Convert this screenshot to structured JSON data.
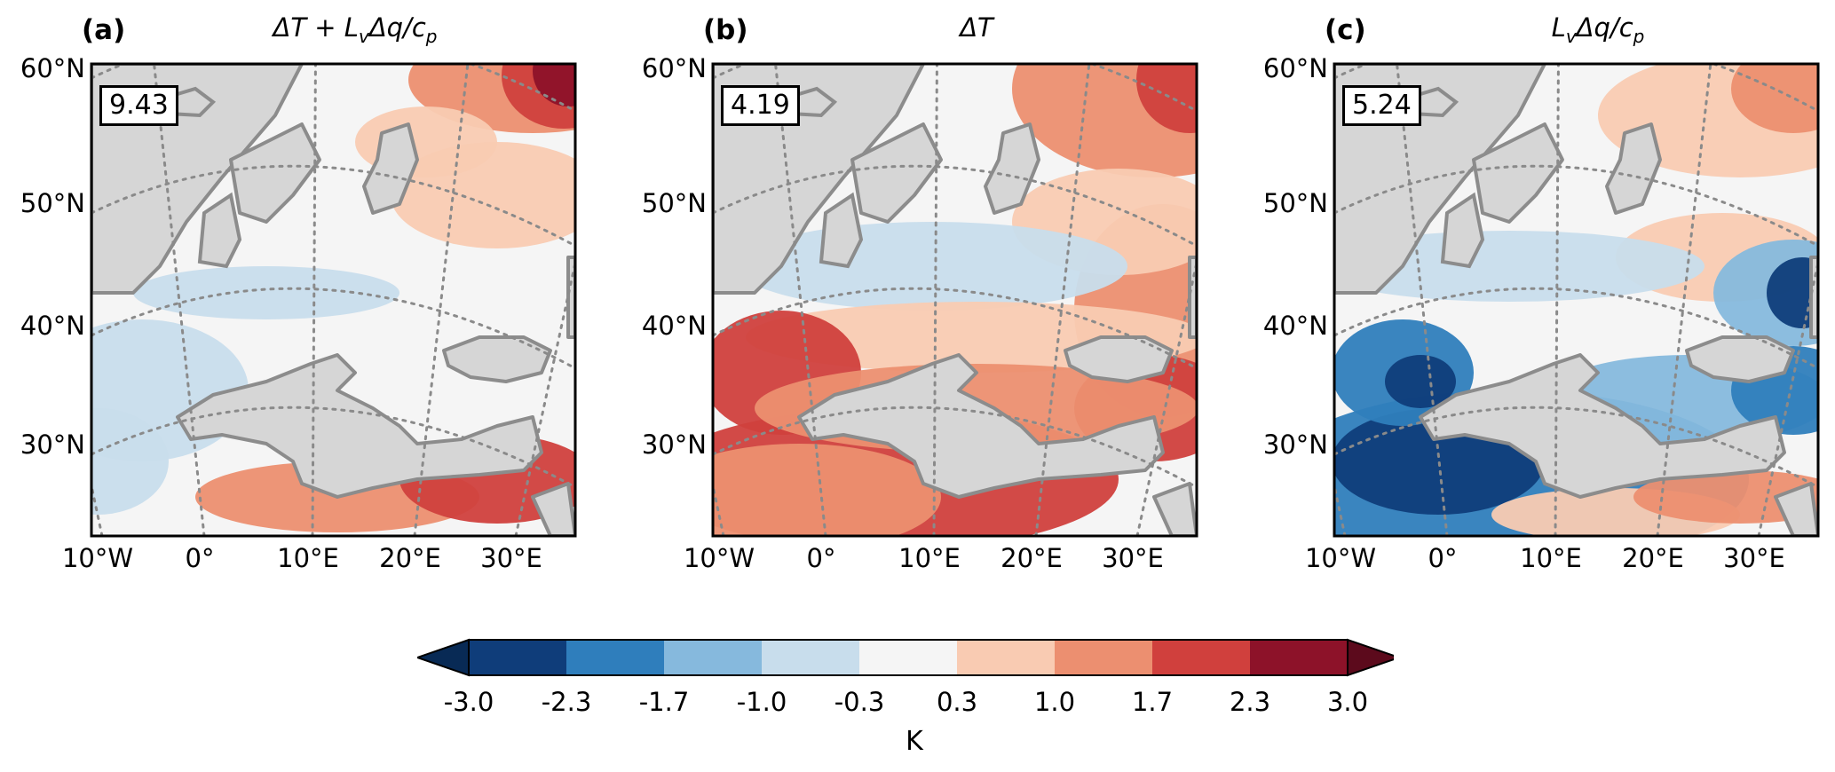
{
  "panels": [
    {
      "tag": "(a)",
      "title_parts": [
        "ΔT + L",
        "v",
        "Δq/c",
        "p"
      ],
      "value_box": "9.43",
      "lat_labels": [
        "60°N",
        "50°N",
        "40°N",
        "30°N"
      ],
      "lon_labels": [
        "10°W",
        "0°",
        "10°E",
        "20°E",
        "30°E"
      ],
      "anomaly_pattern": "north-east positive, Iberia/Atlantic negative, Mediterranean coast strong positive"
    },
    {
      "tag": "(b)",
      "title_parts": [
        "ΔT"
      ],
      "value_box": "4.19",
      "lat_labels": [
        "60°N",
        "50°N",
        "40°N",
        "30°N"
      ],
      "lon_labels": [
        "10°W",
        "0°",
        "10°E",
        "20°E",
        "30°E"
      ],
      "anomaly_pattern": "mostly positive, strongest over North Africa and Iberia"
    },
    {
      "tag": "(c)",
      "title_parts": [
        "L",
        "v",
        "Δq/c",
        "p"
      ],
      "value_box": "5.24",
      "lat_labels": [
        "60°N",
        "50°N",
        "40°N",
        "30°N"
      ],
      "lon_labels": [
        "10°W",
        "0°",
        "10°E",
        "20°E",
        "30°E"
      ],
      "anomaly_pattern": "negative over North Africa and south, positive in north-east"
    }
  ],
  "colorbar": {
    "ticks": [
      "-3.0",
      "-2.3",
      "-1.7",
      "-1.0",
      "-0.3",
      "0.3",
      "1.0",
      "1.7",
      "2.3",
      "3.0"
    ],
    "colors": [
      "#0f3d7a",
      "#2f7ebc",
      "#86b9dd",
      "#c8ddec",
      "#f5f5f5",
      "#f9cbb2",
      "#ec8f70",
      "#d0403d",
      "#8d1229"
    ],
    "under_color": "#082a55",
    "over_color": "#5c0a1c",
    "unit": "K"
  },
  "map_colors": {
    "land": "#d6d6d6",
    "coast": "#8c8c8c",
    "grid": "#8a8a8a"
  }
}
